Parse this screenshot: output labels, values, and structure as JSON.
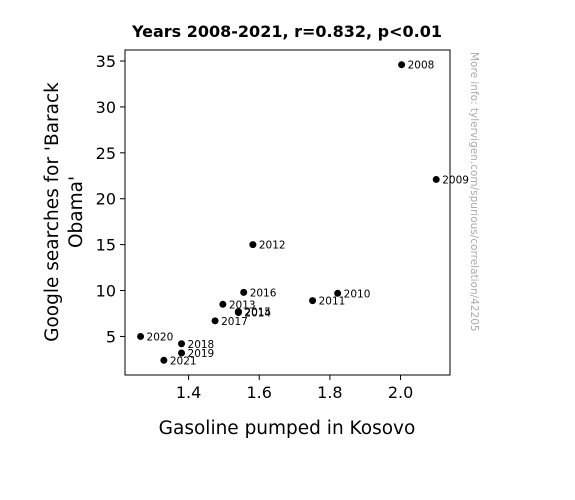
{
  "chart_data": {
    "type": "scatter",
    "title": "Years 2008-2021, r=0.832, p<0.01",
    "xlabel": "Gasoline pumped in Kosovo",
    "ylabel_lines": [
      "Google searches for 'Barack",
      "Obama'"
    ],
    "xlim": [
      1.22,
      2.14
    ],
    "ylim": [
      0.8,
      36.2
    ],
    "x_ticks": [
      1.4,
      1.6,
      1.8,
      2.0
    ],
    "x_tick_labels": [
      "1.4",
      "1.6",
      "1.8",
      "2.0"
    ],
    "y_ticks": [
      5,
      10,
      15,
      20,
      25,
      30,
      35
    ],
    "y_tick_labels": [
      "5",
      "10",
      "15",
      "20",
      "25",
      "30",
      "35"
    ],
    "grid": false,
    "marker_color": "#000000",
    "points": [
      {
        "label": "2008",
        "x": 2.003,
        "y": 34.6
      },
      {
        "label": "2009",
        "x": 2.101,
        "y": 22.1
      },
      {
        "label": "2010",
        "x": 1.822,
        "y": 9.7
      },
      {
        "label": "2011",
        "x": 1.751,
        "y": 8.9
      },
      {
        "label": "2012",
        "x": 1.582,
        "y": 15.0
      },
      {
        "label": "2013",
        "x": 1.497,
        "y": 8.5
      },
      {
        "label": "2014",
        "x": 1.541,
        "y": 7.6
      },
      {
        "label": "2015",
        "x": 1.541,
        "y": 7.7
      },
      {
        "label": "2016",
        "x": 1.556,
        "y": 9.8
      },
      {
        "label": "2017",
        "x": 1.475,
        "y": 6.7
      },
      {
        "label": "2018",
        "x": 1.38,
        "y": 4.2
      },
      {
        "label": "2019",
        "x": 1.38,
        "y": 3.2
      },
      {
        "label": "2020",
        "x": 1.264,
        "y": 5.0
      },
      {
        "label": "2021",
        "x": 1.33,
        "y": 2.4
      }
    ]
  },
  "watermark": "More info: tylervigen.com/spurious/correlation/42205"
}
